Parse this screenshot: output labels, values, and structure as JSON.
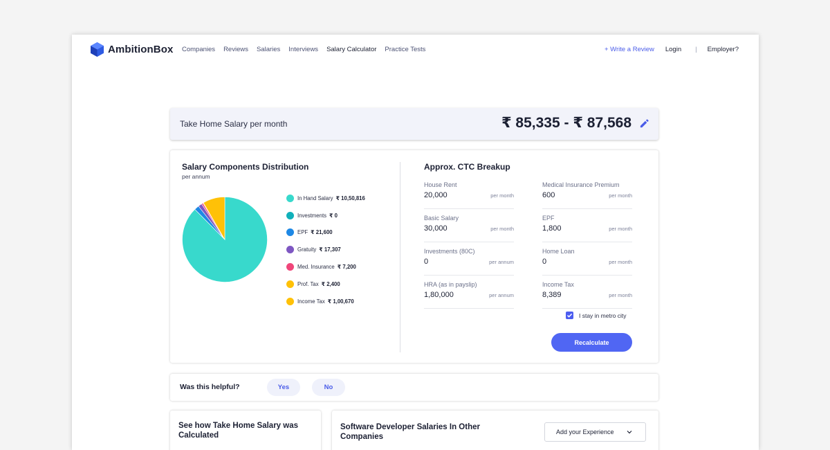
{
  "nav": {
    "brand": "AmbitionBox",
    "links": [
      "Companies",
      "Reviews",
      "Salaries",
      "Interviews",
      "Salary Calculator",
      "Practice Tests"
    ],
    "write_review": "+ Write a Review",
    "login": "Login",
    "separator": "|",
    "employer": "Employer?"
  },
  "takehome": {
    "label": "Take Home Salary per month",
    "value": "₹ 85,335 - ₹ 87,568"
  },
  "distribution": {
    "title": "Salary Components Distribution",
    "subtitle": "per annum",
    "legend": [
      {
        "name": "In Hand Salary",
        "value": "₹ 10,50,816",
        "color": "#38d9cc"
      },
      {
        "name": "Investments",
        "value": "₹ 0",
        "color": "#10b0ba"
      },
      {
        "name": "EPF",
        "value": "₹ 21,600",
        "color": "#1e88e5"
      },
      {
        "name": "Gratuity",
        "value": "₹ 17,307",
        "color": "#7e57c2"
      },
      {
        "name": "Med. Insurance",
        "value": "₹ 7,200",
        "color": "#f0467a"
      },
      {
        "name": "Prof. Tax",
        "value": "₹ 2,400",
        "color": "#ffc107"
      },
      {
        "name": "Income Tax",
        "value": "₹ 1,00,670",
        "color": "#ffc107"
      }
    ]
  },
  "chart_data": {
    "type": "pie",
    "categories": [
      "In Hand Salary",
      "Investments",
      "EPF",
      "Gratuity",
      "Med. Insurance",
      "Prof. Tax",
      "Income Tax"
    ],
    "values": [
      1050816,
      0,
      21600,
      17307,
      7200,
      2400,
      100670
    ],
    "colors": [
      "#38d9cc",
      "#10b0ba",
      "#1e88e5",
      "#7e57c2",
      "#f0467a",
      "#ffc107",
      "#ffc107"
    ]
  },
  "ctc": {
    "title": "Approx. CTC Breakup",
    "fields": [
      {
        "label": "House Rent",
        "value": "20,000",
        "unit": "per month"
      },
      {
        "label": "Medical Insurance Premium",
        "value": "600",
        "unit": "per month"
      },
      {
        "label": "Basic Salary",
        "value": "30,000",
        "unit": "per month"
      },
      {
        "label": "EPF",
        "value": "1,800",
        "unit": "per month"
      },
      {
        "label": "Investments (80C)",
        "value": "0",
        "unit": "per annum"
      },
      {
        "label": "Home Loan",
        "value": "0",
        "unit": "per month"
      },
      {
        "label": "HRA (as in payslip)",
        "value": "1,80,000",
        "unit": "per annum"
      },
      {
        "label": "Income Tax",
        "value": "8,389",
        "unit": "per month"
      }
    ],
    "metro_label": "I stay in metro city",
    "metro_checked": true,
    "recalculate": "Recalculate"
  },
  "helpful": {
    "question": "Was this helpful?",
    "yes": "Yes",
    "no": "No"
  },
  "bottom": {
    "left_title": "See how Take Home Salary was Calculated",
    "right_title": "Software Developer Salaries In Other Companies",
    "add_experience": "Add your Experience"
  }
}
